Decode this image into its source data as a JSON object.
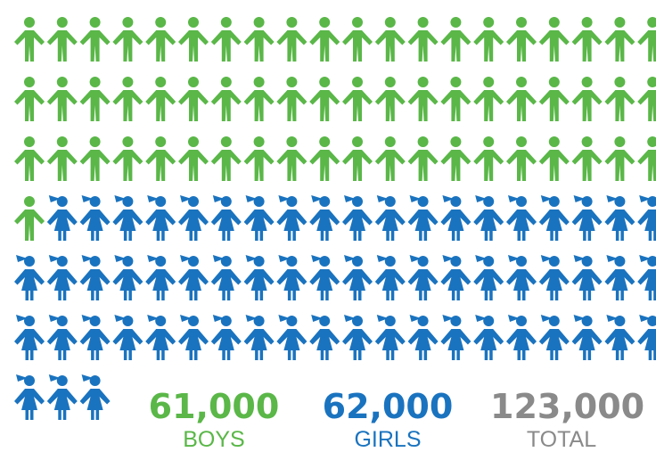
{
  "chart_data": {
    "type": "pictogram",
    "series": [
      {
        "name": "BOYS",
        "icon": "boy-figure-icon",
        "color": "#5ab748",
        "icons": 61,
        "value": 61000
      },
      {
        "name": "GIRLS",
        "icon": "girl-figure-icon",
        "color": "#1a73bf",
        "icons": 62,
        "value": 62000
      }
    ],
    "units_per_icon": 1000,
    "icons_per_row": 20,
    "total": {
      "label": "TOTAL",
      "value": 123000,
      "color": "#8a8a8a"
    }
  },
  "stats": {
    "boys": {
      "value": "61,000",
      "label": "BOYS",
      "color": "#5ab748"
    },
    "girls": {
      "value": "62,000",
      "label": "GIRLS",
      "color": "#1a73bf"
    },
    "total": {
      "value": "123,000",
      "label": "TOTAL",
      "color": "#8a8a8a"
    }
  }
}
